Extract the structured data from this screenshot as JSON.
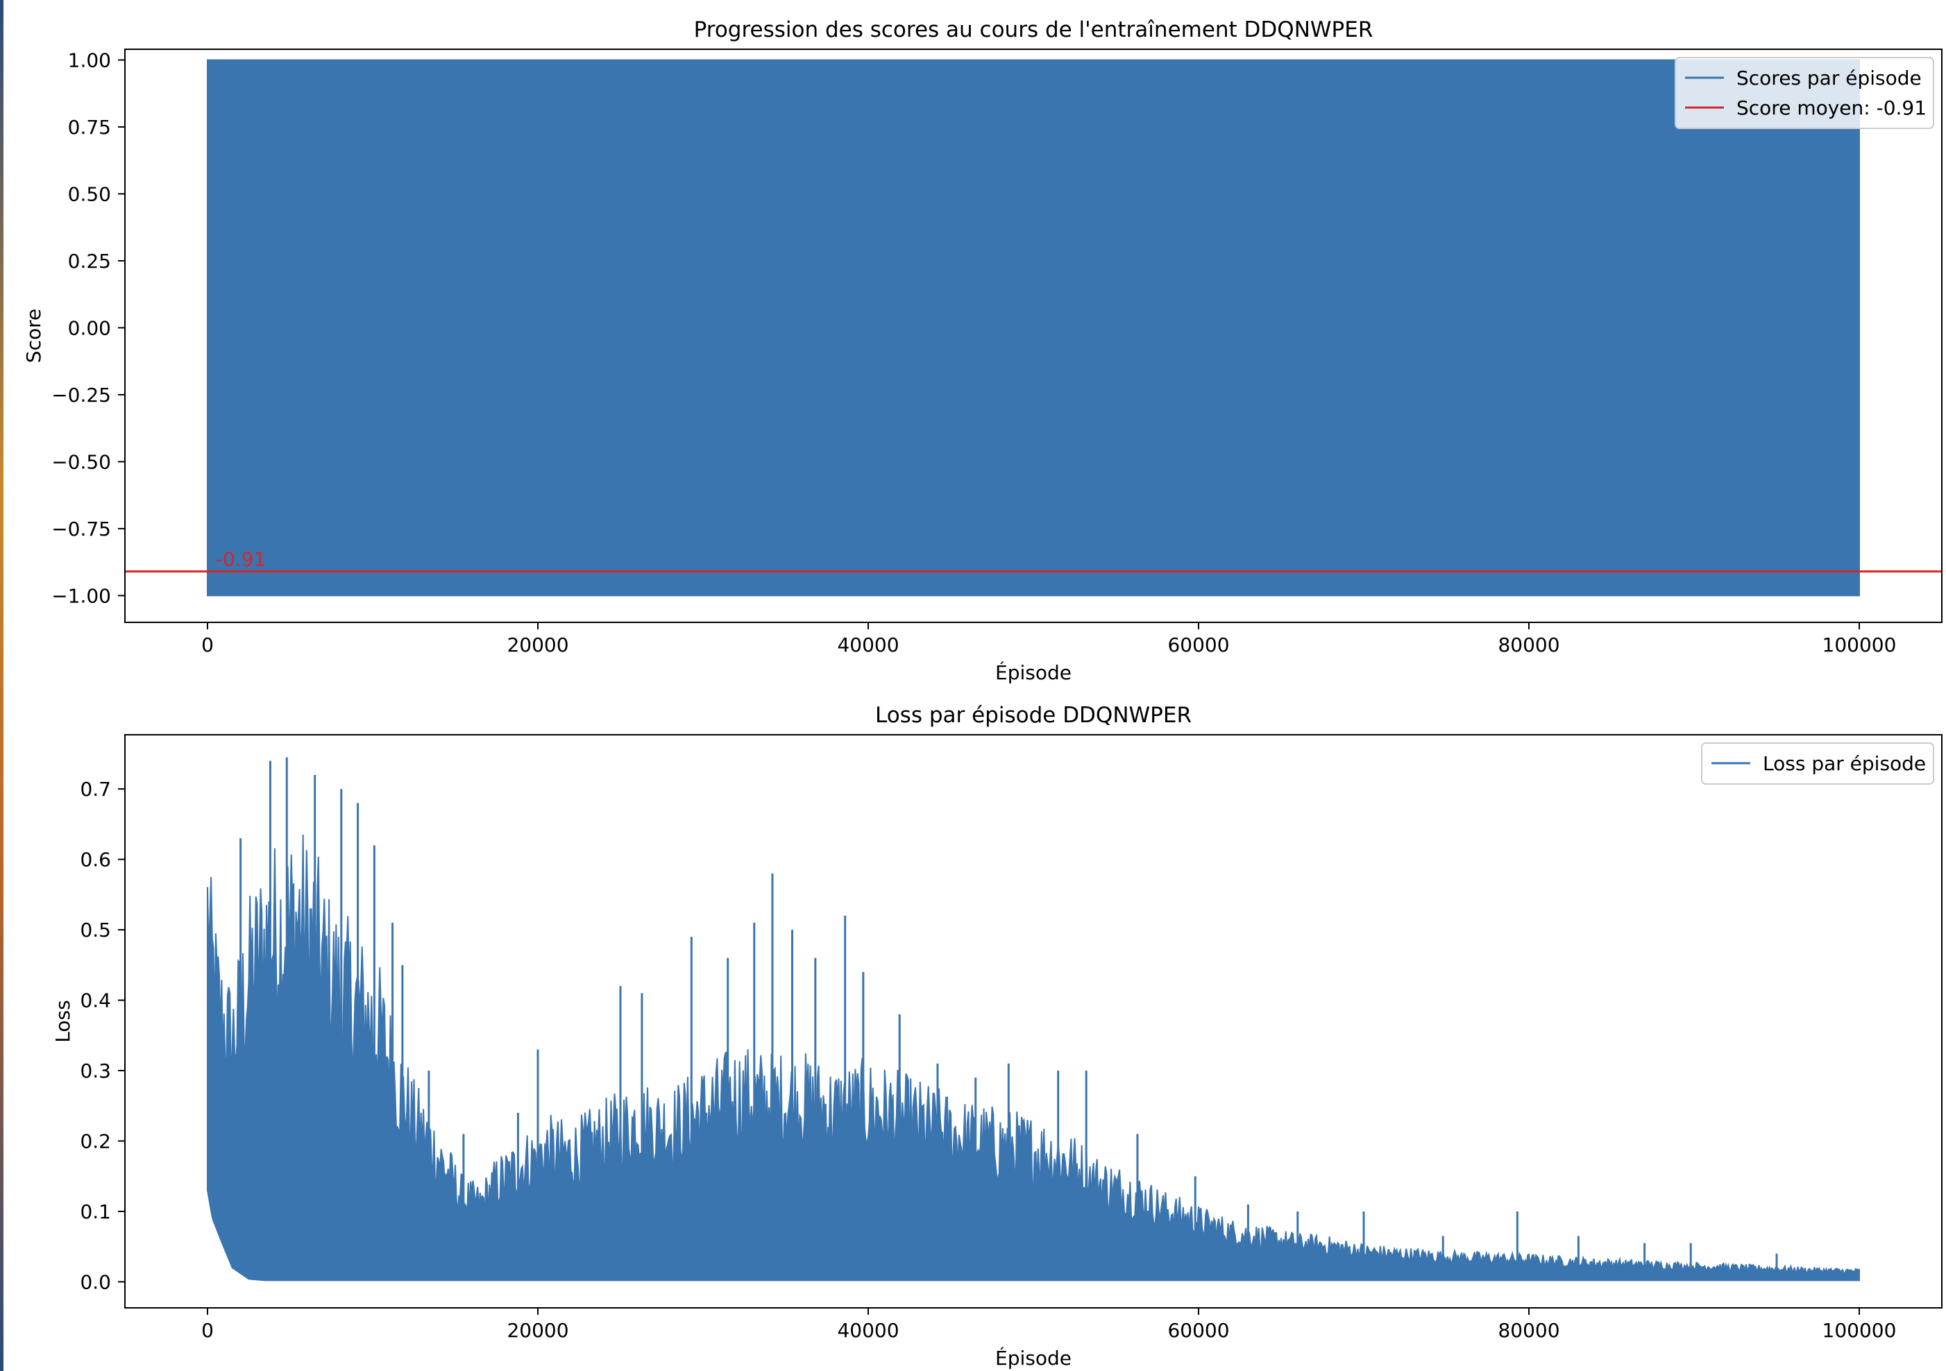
{
  "chart_data": [
    {
      "type": "line",
      "title": "Progression des scores au cours de l'entraînement DDQNWPER",
      "xlabel": "Épisode",
      "ylabel": "Score",
      "xlim": [
        -5000,
        105000
      ],
      "ylim": [
        -1.1,
        1.04
      ],
      "x_ticks": [
        0,
        20000,
        40000,
        60000,
        80000,
        100000
      ],
      "x_tick_labels": [
        "0",
        "20000",
        "40000",
        "60000",
        "80000",
        "100000"
      ],
      "y_ticks": [
        1.0,
        0.75,
        0.5,
        0.25,
        0.0,
        -0.25,
        -0.5,
        -0.75,
        -1.0
      ],
      "y_tick_labels": [
        "1.00",
        "0.75",
        "0.50",
        "0.25",
        "0.00",
        "−0.25",
        "−0.50",
        "−0.75",
        "−1.00"
      ],
      "grid": false,
      "legend_position": "top-right",
      "series": [
        {
          "name": "Scores par épisode",
          "color": "#3b75af",
          "x_range": [
            0,
            100000
          ],
          "envelope_x": [
            0,
            100000
          ],
          "envelope_min": [
            -1.0,
            -1.0
          ],
          "envelope_max": [
            1.0,
            1.0
          ]
        }
      ],
      "hlines": [
        {
          "name": "Score moyen: -0.91",
          "y": -0.91,
          "color": "#d62728",
          "annotation": "-0.91",
          "annotation_x": 500
        }
      ]
    },
    {
      "type": "line",
      "title": "Loss par épisode DDQNWPER",
      "xlabel": "Épisode",
      "ylabel": "Loss",
      "xlim": [
        -5000,
        105000
      ],
      "ylim": [
        -0.037,
        0.777
      ],
      "x_ticks": [
        0,
        20000,
        40000,
        60000,
        80000,
        100000
      ],
      "x_tick_labels": [
        "0",
        "20000",
        "40000",
        "60000",
        "80000",
        "100000"
      ],
      "y_ticks": [
        0.0,
        0.1,
        0.2,
        0.3,
        0.4,
        0.5,
        0.6,
        0.7
      ],
      "y_tick_labels": [
        "0.0",
        "0.1",
        "0.2",
        "0.3",
        "0.4",
        "0.5",
        "0.6",
        "0.7"
      ],
      "grid": false,
      "legend_position": "top-right",
      "series": [
        {
          "name": "Loss par épisode",
          "color": "#3b75af",
          "envelope_x": [
            0,
            300,
            800,
            1500,
            2500,
            3500,
            4500,
            5500,
            6500,
            7500,
            8500,
            9500,
            10500,
            11500,
            12500,
            13500,
            14500,
            15500,
            16500,
            17500,
            18500,
            19500,
            20500,
            22000,
            24000,
            26000,
            28000,
            30000,
            32000,
            34000,
            36000,
            38000,
            40000,
            42000,
            44000,
            46000,
            48000,
            50000,
            52000,
            54000,
            56000,
            58000,
            60000,
            62000,
            64000,
            66000,
            68000,
            70000,
            72000,
            74000,
            76000,
            78000,
            80000,
            82000,
            84000,
            86000,
            88000,
            90000,
            92000,
            94000,
            96000,
            98000,
            100000
          ],
          "envelope_max": [
            0.64,
            0.55,
            0.47,
            0.43,
            0.55,
            0.62,
            0.64,
            0.66,
            0.62,
            0.55,
            0.52,
            0.49,
            0.45,
            0.36,
            0.29,
            0.25,
            0.2,
            0.15,
            0.14,
            0.18,
            0.2,
            0.22,
            0.24,
            0.23,
            0.26,
            0.29,
            0.28,
            0.31,
            0.34,
            0.33,
            0.33,
            0.31,
            0.32,
            0.3,
            0.28,
            0.26,
            0.25,
            0.24,
            0.22,
            0.18,
            0.16,
            0.13,
            0.11,
            0.09,
            0.08,
            0.07,
            0.065,
            0.055,
            0.05,
            0.047,
            0.044,
            0.042,
            0.04,
            0.037,
            0.034,
            0.032,
            0.03,
            0.028,
            0.026,
            0.024,
            0.022,
            0.02,
            0.019
          ],
          "envelope_min": [
            0.13,
            0.09,
            0.06,
            0.02,
            0.004,
            0.002,
            0.002,
            0.002,
            0.002,
            0.002,
            0.002,
            0.002,
            0.002,
            0.002,
            0.002,
            0.002,
            0.002,
            0.002,
            0.002,
            0.002,
            0.002,
            0.002,
            0.002,
            0.002,
            0.002,
            0.002,
            0.002,
            0.002,
            0.002,
            0.002,
            0.002,
            0.002,
            0.002,
            0.002,
            0.002,
            0.002,
            0.002,
            0.002,
            0.002,
            0.002,
            0.002,
            0.002,
            0.002,
            0.002,
            0.002,
            0.002,
            0.002,
            0.002,
            0.002,
            0.002,
            0.002,
            0.002,
            0.002,
            0.002,
            0.002,
            0.002,
            0.002,
            0.002,
            0.002,
            0.002,
            0.002,
            0.002,
            0.002
          ],
          "spikes": [
            {
              "x": 4800,
              "y": 0.745
            },
            {
              "x": 3800,
              "y": 0.74
            },
            {
              "x": 6500,
              "y": 0.72
            },
            {
              "x": 8100,
              "y": 0.7
            },
            {
              "x": 2000,
              "y": 0.63
            },
            {
              "x": 9100,
              "y": 0.68
            },
            {
              "x": 10100,
              "y": 0.62
            },
            {
              "x": 11200,
              "y": 0.51
            },
            {
              "x": 11800,
              "y": 0.45
            },
            {
              "x": 13400,
              "y": 0.3
            },
            {
              "x": 15500,
              "y": 0.21
            },
            {
              "x": 18800,
              "y": 0.24
            },
            {
              "x": 20000,
              "y": 0.33
            },
            {
              "x": 25000,
              "y": 0.42
            },
            {
              "x": 26300,
              "y": 0.41
            },
            {
              "x": 29300,
              "y": 0.49
            },
            {
              "x": 31500,
              "y": 0.46
            },
            {
              "x": 33100,
              "y": 0.51
            },
            {
              "x": 34200,
              "y": 0.58
            },
            {
              "x": 35400,
              "y": 0.5
            },
            {
              "x": 36800,
              "y": 0.46
            },
            {
              "x": 38600,
              "y": 0.52
            },
            {
              "x": 39700,
              "y": 0.44
            },
            {
              "x": 41900,
              "y": 0.38
            },
            {
              "x": 44200,
              "y": 0.31
            },
            {
              "x": 46500,
              "y": 0.29
            },
            {
              "x": 48500,
              "y": 0.31
            },
            {
              "x": 51500,
              "y": 0.3
            },
            {
              "x": 53200,
              "y": 0.3
            },
            {
              "x": 56300,
              "y": 0.21
            },
            {
              "x": 59800,
              "y": 0.15
            },
            {
              "x": 63000,
              "y": 0.11
            },
            {
              "x": 66000,
              "y": 0.1
            },
            {
              "x": 70000,
              "y": 0.1
            },
            {
              "x": 74800,
              "y": 0.065
            },
            {
              "x": 79300,
              "y": 0.1
            },
            {
              "x": 83000,
              "y": 0.065
            },
            {
              "x": 87000,
              "y": 0.055
            },
            {
              "x": 89800,
              "y": 0.055
            },
            {
              "x": 95000,
              "y": 0.04
            }
          ]
        }
      ]
    }
  ]
}
